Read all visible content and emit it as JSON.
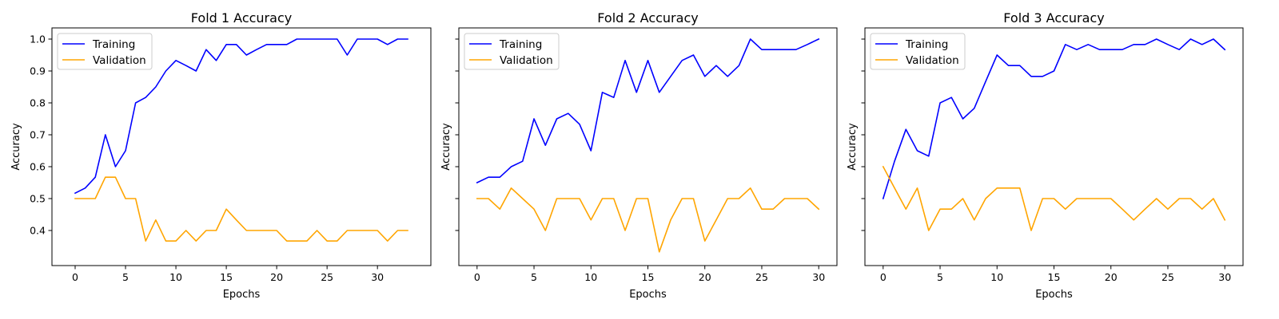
{
  "chart_data": [
    {
      "type": "line",
      "title": "Fold 1 Accuracy",
      "xlabel": "Epochs",
      "ylabel": "Accuracy",
      "xlim": [
        -2.3,
        35.3
      ],
      "ylim": [
        0.29,
        1.035
      ],
      "xticks": [
        0,
        5,
        10,
        15,
        20,
        25,
        30
      ],
      "yticks": [
        0.4,
        0.5,
        0.6,
        0.7,
        0.8,
        0.9,
        1.0
      ],
      "show_yticklabels": true,
      "legend": "top-left",
      "grid": false,
      "series": [
        {
          "name": "Training",
          "color": "#0000ff",
          "x": [
            0,
            1,
            2,
            3,
            4,
            5,
            6,
            7,
            8,
            9,
            10,
            11,
            12,
            13,
            14,
            15,
            16,
            17,
            18,
            19,
            20,
            21,
            22,
            23,
            24,
            25,
            26,
            27,
            28,
            29,
            30,
            31,
            32,
            33
          ],
          "values": [
            0.517,
            0.533,
            0.567,
            0.7,
            0.6,
            0.65,
            0.8,
            0.817,
            0.85,
            0.9,
            0.933,
            0.917,
            0.9,
            0.967,
            0.933,
            0.983,
            0.983,
            0.95,
            0.967,
            0.983,
            0.983,
            0.983,
            1.0,
            1.0,
            1.0,
            1.0,
            1.0,
            0.95,
            1.0,
            1.0,
            1.0,
            0.983,
            1.0,
            1.0
          ]
        },
        {
          "name": "Validation",
          "color": "#ffa500",
          "x": [
            0,
            1,
            2,
            3,
            4,
            5,
            6,
            7,
            8,
            9,
            10,
            11,
            12,
            13,
            14,
            15,
            16,
            17,
            18,
            19,
            20,
            21,
            22,
            23,
            24,
            25,
            26,
            27,
            28,
            29,
            30,
            31,
            32,
            33
          ],
          "values": [
            0.5,
            0.5,
            0.5,
            0.567,
            0.567,
            0.5,
            0.5,
            0.367,
            0.433,
            0.367,
            0.367,
            0.4,
            0.367,
            0.4,
            0.4,
            0.467,
            0.433,
            0.4,
            0.4,
            0.4,
            0.4,
            0.367,
            0.367,
            0.367,
            0.4,
            0.367,
            0.367,
            0.4,
            0.4,
            0.4,
            0.4,
            0.367,
            0.4,
            0.4
          ]
        }
      ]
    },
    {
      "type": "line",
      "title": "Fold 2 Accuracy",
      "xlabel": "Epochs",
      "ylabel": "Accuracy",
      "xlim": [
        -1.6,
        31.6
      ],
      "ylim": [
        0.29,
        1.035
      ],
      "xticks": [
        0,
        5,
        10,
        15,
        20,
        25,
        30
      ],
      "yticks": [
        0.4,
        0.5,
        0.6,
        0.7,
        0.8,
        0.9,
        1.0
      ],
      "show_yticklabels": false,
      "legend": "top-left",
      "grid": false,
      "series": [
        {
          "name": "Training",
          "color": "#0000ff",
          "x": [
            0,
            1,
            2,
            3,
            4,
            5,
            6,
            7,
            8,
            9,
            10,
            11,
            12,
            13,
            14,
            15,
            16,
            17,
            18,
            19,
            20,
            21,
            22,
            23,
            24,
            25,
            26,
            27,
            28,
            29,
            30
          ],
          "values": [
            0.55,
            0.567,
            0.567,
            0.6,
            0.617,
            0.75,
            0.667,
            0.75,
            0.767,
            0.733,
            0.65,
            0.833,
            0.817,
            0.933,
            0.833,
            0.933,
            0.833,
            0.883,
            0.933,
            0.95,
            0.883,
            0.917,
            0.883,
            0.917,
            1.0,
            0.967,
            0.967,
            0.967,
            0.967,
            0.983,
            1.0
          ]
        },
        {
          "name": "Validation",
          "color": "#ffa500",
          "x": [
            0,
            1,
            2,
            3,
            4,
            5,
            6,
            7,
            8,
            9,
            10,
            11,
            12,
            13,
            14,
            15,
            16,
            17,
            18,
            19,
            20,
            21,
            22,
            23,
            24,
            25,
            26,
            27,
            28,
            29,
            30
          ],
          "values": [
            0.5,
            0.5,
            0.467,
            0.533,
            0.5,
            0.467,
            0.4,
            0.5,
            0.5,
            0.5,
            0.433,
            0.5,
            0.5,
            0.4,
            0.5,
            0.5,
            0.333,
            0.433,
            0.5,
            0.5,
            0.367,
            0.433,
            0.5,
            0.5,
            0.533,
            0.467,
            0.467,
            0.5,
            0.5,
            0.5,
            0.467
          ]
        }
      ]
    },
    {
      "type": "line",
      "title": "Fold 3 Accuracy",
      "xlabel": "Epochs",
      "ylabel": "Accuracy",
      "xlim": [
        -1.6,
        31.6
      ],
      "ylim": [
        0.29,
        1.035
      ],
      "xticks": [
        0,
        5,
        10,
        15,
        20,
        25,
        30
      ],
      "yticks": [
        0.4,
        0.5,
        0.6,
        0.7,
        0.8,
        0.9,
        1.0
      ],
      "show_yticklabels": false,
      "legend": "top-left",
      "grid": false,
      "series": [
        {
          "name": "Training",
          "color": "#0000ff",
          "x": [
            0,
            1,
            2,
            3,
            4,
            5,
            6,
            7,
            8,
            9,
            10,
            11,
            12,
            13,
            14,
            15,
            16,
            17,
            18,
            19,
            20,
            21,
            22,
            23,
            24,
            25,
            26,
            27,
            28,
            29,
            30
          ],
          "values": [
            0.5,
            0.617,
            0.717,
            0.65,
            0.633,
            0.8,
            0.817,
            0.75,
            0.783,
            0.867,
            0.95,
            0.917,
            0.917,
            0.883,
            0.883,
            0.9,
            0.983,
            0.967,
            0.983,
            0.967,
            0.967,
            0.967,
            0.983,
            0.983,
            1.0,
            0.983,
            0.967,
            1.0,
            0.983,
            1.0,
            0.967
          ]
        },
        {
          "name": "Validation",
          "color": "#ffa500",
          "x": [
            0,
            1,
            2,
            3,
            4,
            5,
            6,
            7,
            8,
            9,
            10,
            11,
            12,
            13,
            14,
            15,
            16,
            17,
            18,
            19,
            20,
            21,
            22,
            23,
            24,
            25,
            26,
            27,
            28,
            29,
            30
          ],
          "values": [
            0.6,
            0.533,
            0.467,
            0.533,
            0.4,
            0.467,
            0.467,
            0.5,
            0.433,
            0.5,
            0.533,
            0.533,
            0.533,
            0.4,
            0.5,
            0.5,
            0.467,
            0.5,
            0.5,
            0.5,
            0.5,
            0.467,
            0.433,
            0.467,
            0.5,
            0.467,
            0.5,
            0.5,
            0.467,
            0.5,
            0.433
          ]
        }
      ]
    }
  ]
}
